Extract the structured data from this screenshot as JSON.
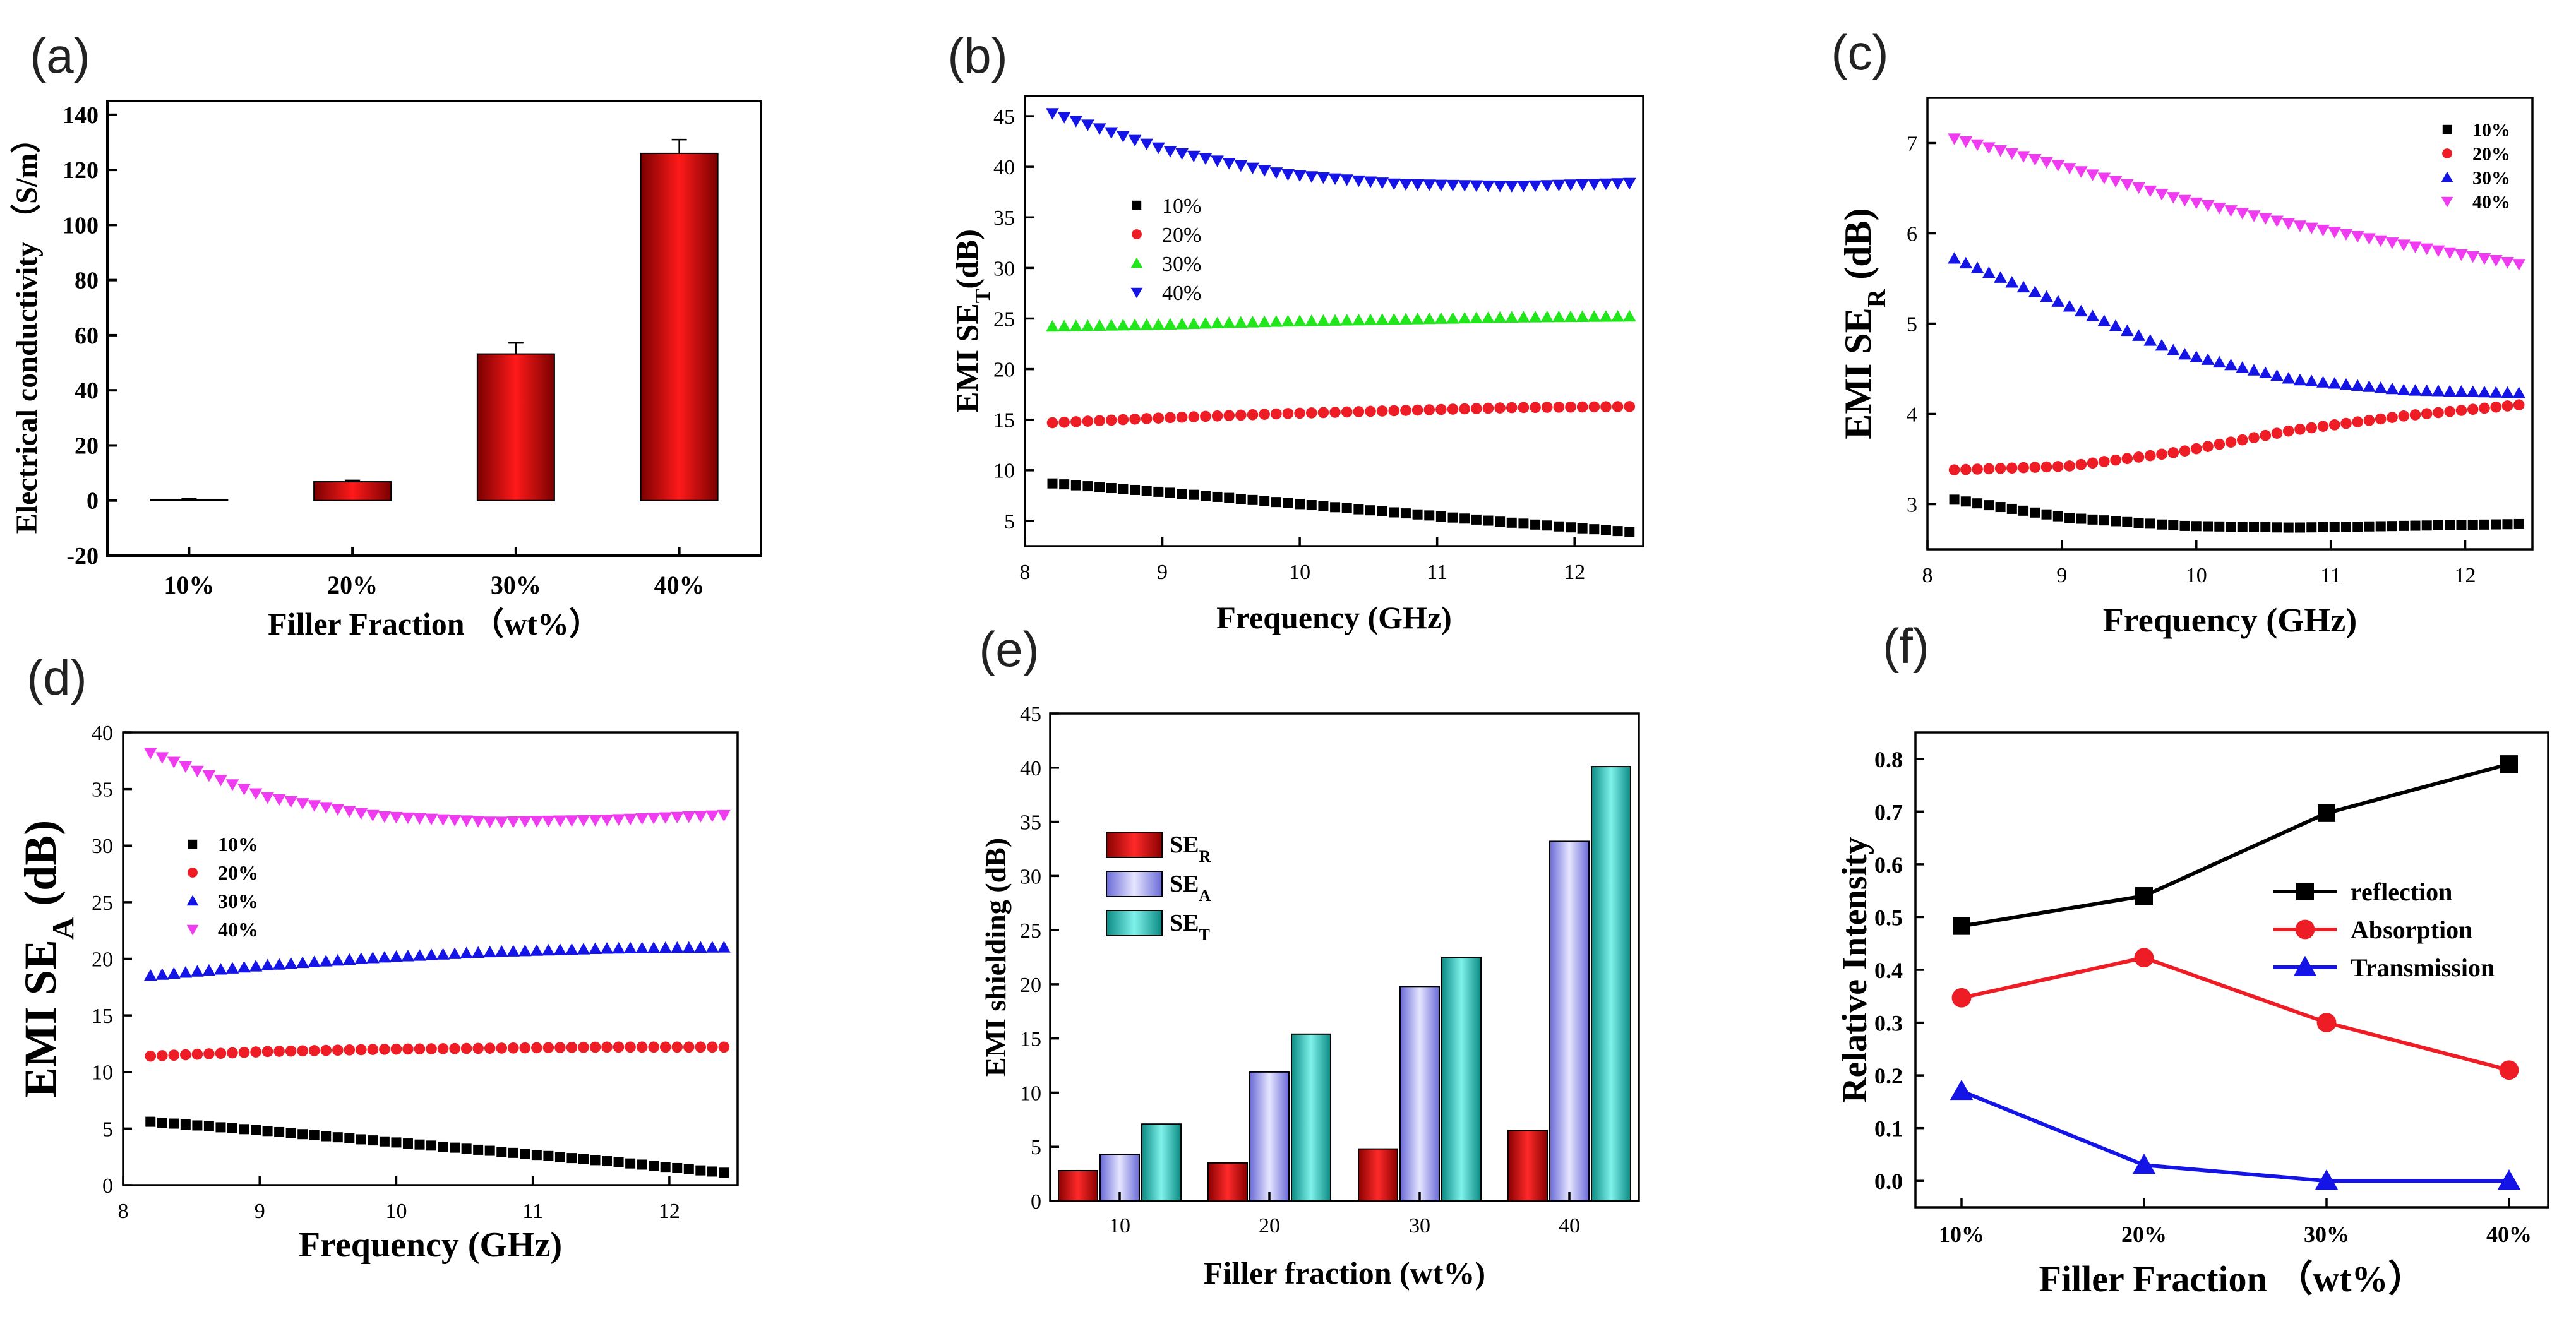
{
  "colors": {
    "black": "#000000",
    "red": "#ee1c24",
    "green": "#22e61c",
    "blue": "#1414e6",
    "magenta": "#f03cf0",
    "bar_red": "#e01010",
    "bar_lavender": "#a8a8f0",
    "bar_teal": "#20c8c0"
  },
  "chart_data": [
    {
      "id": "a",
      "panel_label": "(a)",
      "type": "bar",
      "categories": [
        "10%",
        "20%",
        "30%",
        "40%"
      ],
      "values": [
        0.4,
        6.8,
        53.2,
        126.0
      ],
      "errors": [
        0.3,
        0.5,
        4.0,
        5.0
      ],
      "xlabel": "Filler Fraction （wt%）",
      "ylabel": "Electrical conductivity （S/m）",
      "ylim": [
        -20,
        145
      ],
      "yticks": [
        -20,
        0,
        20,
        40,
        60,
        80,
        100,
        120,
        140
      ]
    },
    {
      "id": "b",
      "panel_label": "(b)",
      "type": "scatter",
      "xlabel": "Frequency (GHz)",
      "ylabel": "EMI SE",
      "ylabel_sub": "T",
      "ylabel_suffix": "(dB)",
      "xlim": [
        8,
        12.5
      ],
      "ylim": [
        2.5,
        47
      ],
      "xticks": [
        8,
        9,
        10,
        11,
        12
      ],
      "yticks": [
        5,
        10,
        15,
        20,
        25,
        30,
        35,
        40,
        45
      ],
      "legend": "upper-middle",
      "series": [
        {
          "name": "10%",
          "marker": "square",
          "color": "#000000",
          "x_range": [
            8.2,
            12.4
          ],
          "y": [
            8.7,
            7.8,
            6.8,
            5.8,
            4.8,
            3.9
          ]
        },
        {
          "name": "20%",
          "marker": "circle",
          "color": "#ee1c24",
          "x_range": [
            8.2,
            12.4
          ],
          "y": [
            14.7,
            15.2,
            15.6,
            15.9,
            16.2,
            16.3
          ]
        },
        {
          "name": "30%",
          "marker": "triangle-up",
          "color": "#22e61c",
          "x_range": [
            8.2,
            12.4
          ],
          "y": [
            24.2,
            24.4,
            24.7,
            24.9,
            25.1,
            25.2
          ]
        },
        {
          "name": "40%",
          "marker": "triangle-down",
          "color": "#1414e6",
          "x_range": [
            8.2,
            12.4
          ],
          "y": [
            45.3,
            41.6,
            39.3,
            38.3,
            38.1,
            38.4
          ]
        }
      ]
    },
    {
      "id": "c",
      "panel_label": "(c)",
      "type": "scatter",
      "xlabel": "Frequency (GHz)",
      "ylabel": "EMI SE",
      "ylabel_sub": "R",
      "ylabel_suffix": " (dB)",
      "xlim": [
        8,
        12.5
      ],
      "ylim": [
        2.5,
        7.5
      ],
      "xticks": [
        8,
        9,
        10,
        11,
        12
      ],
      "yticks": [
        3,
        4,
        5,
        6,
        7
      ],
      "legend": "top-right",
      "series": [
        {
          "name": "10%",
          "marker": "square",
          "color": "#000000",
          "x_range": [
            8.2,
            12.4
          ],
          "y": [
            3.05,
            2.85,
            2.76,
            2.74,
            2.76,
            2.78
          ]
        },
        {
          "name": "20%",
          "marker": "circle",
          "color": "#ee1c24",
          "x_range": [
            8.2,
            12.4
          ],
          "y": [
            3.38,
            3.42,
            3.58,
            3.82,
            3.98,
            4.1
          ]
        },
        {
          "name": "30%",
          "marker": "triangle-up",
          "color": "#1414e6",
          "x_range": [
            8.2,
            12.4
          ],
          "y": [
            5.72,
            5.2,
            4.67,
            4.38,
            4.26,
            4.23
          ]
        },
        {
          "name": "40%",
          "marker": "triangle-down",
          "color": "#f03cf0",
          "x_range": [
            8.2,
            12.4
          ],
          "y": [
            7.05,
            6.73,
            6.38,
            6.1,
            5.87,
            5.66
          ]
        }
      ]
    },
    {
      "id": "d",
      "panel_label": "(d)",
      "type": "scatter",
      "xlabel": "Frequency (GHz)",
      "ylabel": "EMI SE",
      "ylabel_sub": "A",
      "ylabel_suffix": " (dB)",
      "xlim": [
        8,
        12.5
      ],
      "ylim": [
        0,
        40
      ],
      "xticks": [
        8,
        9,
        10,
        11,
        12
      ],
      "yticks": [
        0,
        5,
        10,
        15,
        20,
        25,
        30,
        35,
        40
      ],
      "legend": "upper-left",
      "series": [
        {
          "name": "10%",
          "marker": "square",
          "color": "#000000",
          "x_range": [
            8.2,
            12.4
          ],
          "y": [
            5.6,
            4.8,
            3.9,
            3.0,
            2.1,
            1.1
          ]
        },
        {
          "name": "20%",
          "marker": "circle",
          "color": "#ee1c24",
          "x_range": [
            8.2,
            12.4
          ],
          "y": [
            11.4,
            11.8,
            12.0,
            12.1,
            12.2,
            12.2
          ]
        },
        {
          "name": "30%",
          "marker": "triangle-up",
          "color": "#1414e6",
          "x_range": [
            8.2,
            12.4
          ],
          "y": [
            18.5,
            19.4,
            20.1,
            20.6,
            20.9,
            21.0
          ]
        },
        {
          "name": "40%",
          "marker": "triangle-down",
          "color": "#f03cf0",
          "x_range": [
            8.2,
            12.4
          ],
          "y": [
            38.2,
            34.3,
            32.6,
            32.1,
            32.3,
            32.7
          ]
        }
      ]
    },
    {
      "id": "e",
      "panel_label": "(e)",
      "type": "bar",
      "categories": [
        "10",
        "20",
        "30",
        "40"
      ],
      "xlabel": "Filler fraction (wt%)",
      "ylabel": "EMI shielding (dB)",
      "ylim": [
        0,
        45
      ],
      "yticks": [
        0,
        5,
        10,
        15,
        20,
        25,
        30,
        35,
        40,
        45
      ],
      "legend": "upper-left",
      "series": [
        {
          "name": "SE",
          "sub": "R",
          "color": "#e01010",
          "values": [
            2.8,
            3.5,
            4.8,
            6.5
          ]
        },
        {
          "name": "SE",
          "sub": "A",
          "color": "#a8a8f0",
          "values": [
            4.3,
            11.9,
            19.8,
            33.2
          ]
        },
        {
          "name": "SE",
          "sub": "T",
          "color": "#20c8c0",
          "values": [
            7.1,
            15.4,
            22.5,
            40.1
          ]
        }
      ]
    },
    {
      "id": "f",
      "panel_label": "(f)",
      "type": "line",
      "categories": [
        "10%",
        "20%",
        "30%",
        "40%"
      ],
      "xlabel": "Filler Fraction （wt%）",
      "ylabel": "Relative Intensity",
      "ylim": [
        -0.05,
        0.85
      ],
      "yticks": [
        0.0,
        0.1,
        0.2,
        0.3,
        0.4,
        0.5,
        0.6,
        0.7,
        0.8
      ],
      "legend": "middle-right",
      "series": [
        {
          "name": "reflection",
          "marker": "square",
          "color": "#000000",
          "values": [
            0.483,
            0.54,
            0.697,
            0.79
          ]
        },
        {
          "name": "Absorption",
          "marker": "circle",
          "color": "#ee1c24",
          "values": [
            0.347,
            0.423,
            0.3,
            0.21
          ]
        },
        {
          "name": "Transmission",
          "marker": "triangle-up",
          "color": "#1414e6",
          "values": [
            0.17,
            0.03,
            0.0,
            0.0
          ]
        }
      ]
    }
  ]
}
